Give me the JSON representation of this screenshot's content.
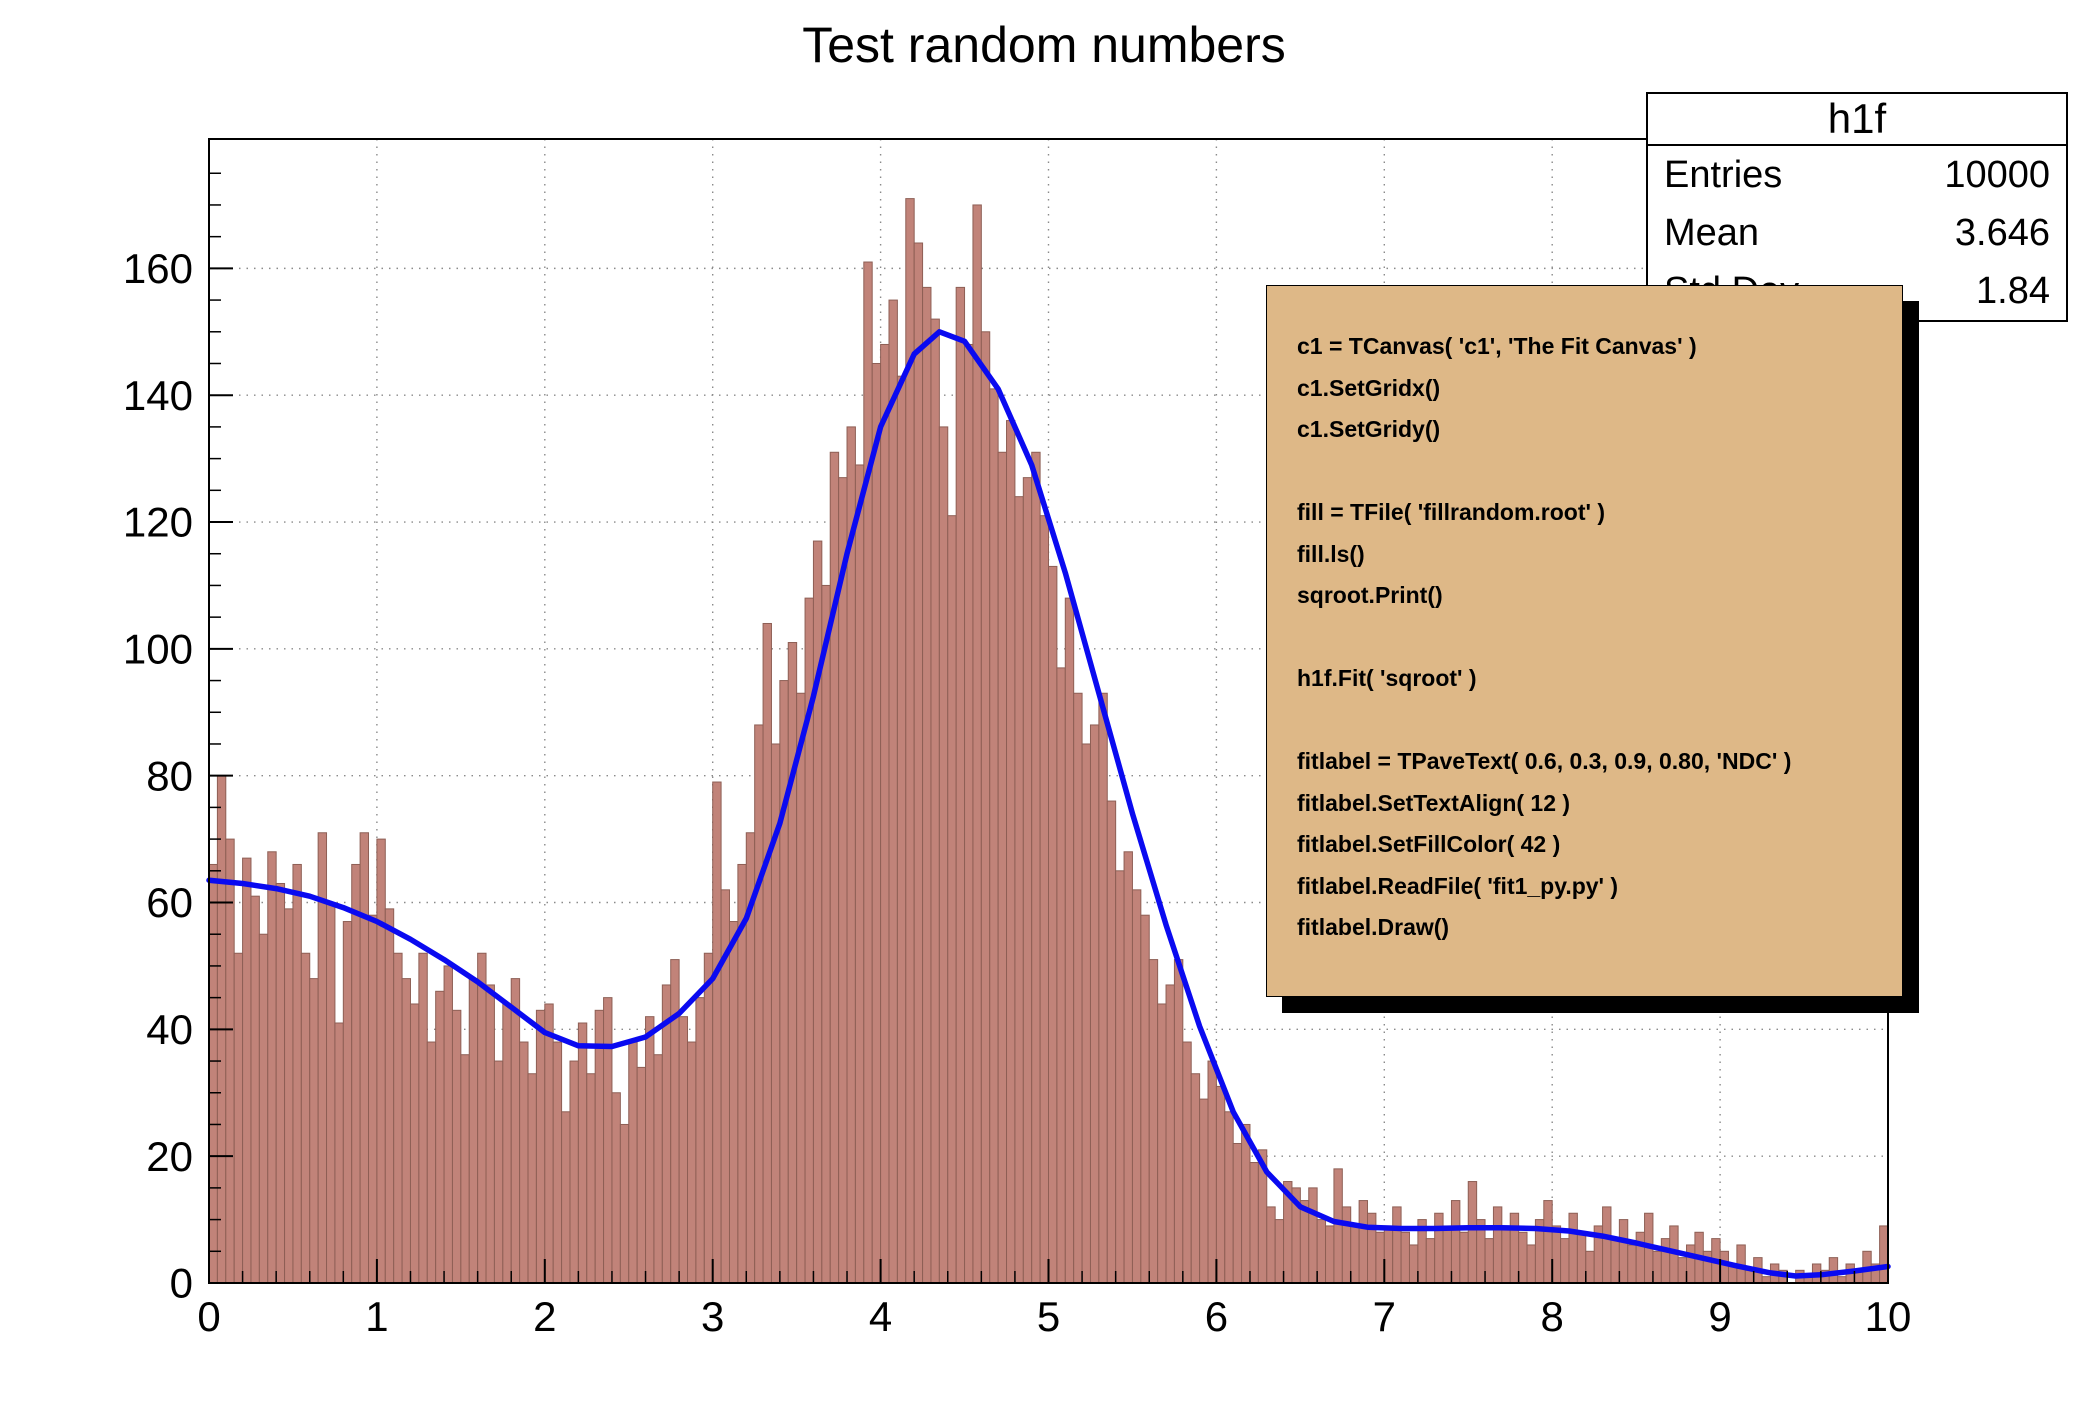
{
  "title": "Test random numbers",
  "colors": {
    "hist_fill": "#C18379",
    "hist_stroke": "#8E5F55",
    "fit_curve": "#0A0AF0",
    "pave_fill": "#DEB887",
    "grid": "#8A8A8A",
    "frame": "#000000"
  },
  "stats_box": {
    "title": "h1f",
    "rows": [
      {
        "label": "Entries",
        "value": "10000"
      },
      {
        "label": "Mean",
        "value": "3.646"
      },
      {
        "label": "Std Dev",
        "value": "1.84"
      }
    ]
  },
  "code_box": {
    "lines": [
      "c1 = TCanvas( 'c1', 'The Fit Canvas' )",
      "c1.SetGridx()",
      "c1.SetGridy()",
      "",
      "fill = TFile( 'fillrandom.root' )",
      "fill.ls()",
      "sqroot.Print()",
      "",
      "h1f.Fit( 'sqroot' )",
      "",
      "fitlabel = TPaveText( 0.6, 0.3, 0.9, 0.80, 'NDC' )",
      "fitlabel.SetTextAlign( 12 )",
      "fitlabel.SetFillColor( 42 )",
      "fitlabel.ReadFile( 'fit1_py.py' )",
      "fitlabel.Draw()"
    ]
  },
  "chart_data": {
    "type": "bar",
    "title": "Test random numbers",
    "xlabel": "",
    "ylabel": "",
    "xlim": [
      0,
      10
    ],
    "ylim": [
      0,
      180.4
    ],
    "xticks": [
      0,
      1,
      2,
      3,
      4,
      5,
      6,
      7,
      8,
      9,
      10
    ],
    "yticks": [
      0,
      20,
      40,
      60,
      80,
      100,
      120,
      140,
      160
    ],
    "grid": true,
    "bin_width": 0.05,
    "bins": [
      66,
      80,
      70,
      52,
      67,
      61,
      55,
      68,
      63,
      59,
      66,
      52,
      48,
      71,
      60,
      41,
      57,
      66,
      71,
      58,
      70,
      59,
      52,
      48,
      44,
      52,
      38,
      46,
      50,
      43,
      36,
      48,
      52,
      47,
      35,
      44,
      48,
      38,
      33,
      43,
      44,
      38,
      27,
      35,
      41,
      33,
      43,
      45,
      30,
      25,
      38,
      34,
      42,
      36,
      47,
      51,
      42,
      38,
      45,
      52,
      79,
      62,
      57,
      66,
      71,
      88,
      104,
      85,
      95,
      101,
      93,
      108,
      117,
      110,
      131,
      127,
      135,
      129,
      161,
      145,
      148,
      155,
      143,
      171,
      164,
      157,
      152,
      135,
      121,
      157,
      148,
      170,
      150,
      141,
      131,
      136,
      124,
      127,
      131,
      121,
      113,
      97,
      108,
      93,
      85,
      88,
      93,
      76,
      65,
      68,
      62,
      58,
      51,
      44,
      47,
      51,
      38,
      33,
      29,
      35,
      31,
      27,
      22,
      25,
      19,
      21,
      12,
      10,
      16,
      15,
      13,
      15,
      10,
      9,
      18,
      12,
      9,
      13,
      11,
      8,
      9,
      12,
      8,
      6,
      10,
      7,
      11,
      9,
      13,
      8,
      16,
      10,
      7,
      12,
      9,
      11,
      8,
      6,
      10,
      13,
      9,
      7,
      11,
      8,
      5,
      9,
      12,
      7,
      10,
      6,
      8,
      11,
      5,
      7,
      9,
      4,
      6,
      8,
      5,
      7,
      5,
      3,
      6,
      2,
      4,
      1,
      3,
      2,
      0,
      2,
      1,
      3,
      2,
      4,
      1,
      3,
      2,
      5,
      3,
      9
    ],
    "fit_curve": {
      "name": "sqroot",
      "points": [
        [
          0,
          63.5
        ],
        [
          0.2,
          63
        ],
        [
          0.4,
          62.2
        ],
        [
          0.6,
          61
        ],
        [
          0.8,
          59.2
        ],
        [
          1.0,
          57
        ],
        [
          1.2,
          54.2
        ],
        [
          1.4,
          51
        ],
        [
          1.6,
          47.5
        ],
        [
          1.8,
          43.5
        ],
        [
          2.0,
          39.5
        ],
        [
          2.2,
          37.4
        ],
        [
          2.4,
          37.3
        ],
        [
          2.6,
          38.8
        ],
        [
          2.8,
          42.5
        ],
        [
          3.0,
          48
        ],
        [
          3.2,
          57.5
        ],
        [
          3.4,
          72.5
        ],
        [
          3.6,
          92.5
        ],
        [
          3.8,
          115
        ],
        [
          4.0,
          135
        ],
        [
          4.2,
          146.5
        ],
        [
          4.35,
          150
        ],
        [
          4.5,
          148.5
        ],
        [
          4.7,
          141
        ],
        [
          4.9,
          129
        ],
        [
          5.1,
          112
        ],
        [
          5.3,
          93
        ],
        [
          5.5,
          74
        ],
        [
          5.7,
          56.5
        ],
        [
          5.9,
          40.5
        ],
        [
          6.1,
          27
        ],
        [
          6.3,
          17.5
        ],
        [
          6.5,
          12
        ],
        [
          6.7,
          9.7
        ],
        [
          6.9,
          8.8
        ],
        [
          7.1,
          8.6
        ],
        [
          7.3,
          8.6
        ],
        [
          7.5,
          8.7
        ],
        [
          7.7,
          8.7
        ],
        [
          7.9,
          8.6
        ],
        [
          8.1,
          8.2
        ],
        [
          8.3,
          7.4
        ],
        [
          8.5,
          6.3
        ],
        [
          8.7,
          5.1
        ],
        [
          8.9,
          3.9
        ],
        [
          9.1,
          2.7
        ],
        [
          9.3,
          1.6
        ],
        [
          9.45,
          1.1
        ],
        [
          9.6,
          1.3
        ],
        [
          9.8,
          1.9
        ],
        [
          10,
          2.6
        ]
      ]
    }
  }
}
